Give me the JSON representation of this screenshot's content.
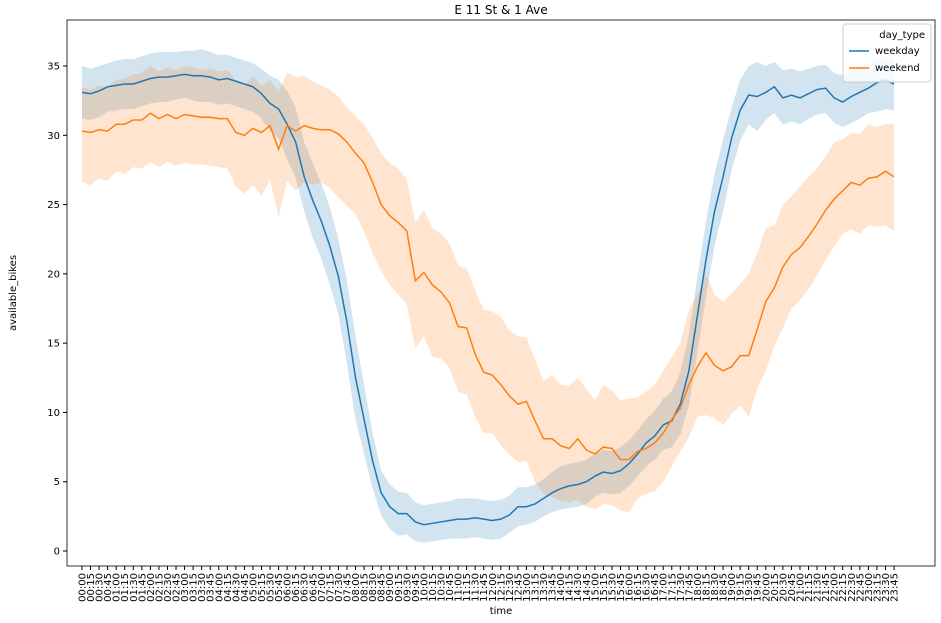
{
  "chart_data": {
    "type": "line",
    "title": "E 11 St & 1 Ave",
    "x_label": "time",
    "y_label": "available_bikes",
    "legend_title": "day_type",
    "legend": "upper right",
    "categories": [
      "00:00",
      "00:15",
      "00:30",
      "00:45",
      "01:00",
      "01:15",
      "01:30",
      "01:45",
      "02:00",
      "02:15",
      "02:30",
      "02:45",
      "03:00",
      "03:15",
      "03:30",
      "03:45",
      "04:00",
      "04:15",
      "04:30",
      "04:45",
      "05:00",
      "05:15",
      "05:30",
      "05:45",
      "06:00",
      "06:15",
      "06:30",
      "06:45",
      "07:00",
      "07:15",
      "07:30",
      "07:45",
      "08:00",
      "08:15",
      "08:30",
      "08:45",
      "09:00",
      "09:15",
      "09:30",
      "09:45",
      "10:00",
      "10:15",
      "10:30",
      "10:45",
      "11:00",
      "11:15",
      "11:30",
      "11:45",
      "12:00",
      "12:15",
      "12:30",
      "12:45",
      "13:00",
      "13:15",
      "13:30",
      "13:45",
      "14:00",
      "14:15",
      "14:30",
      "14:45",
      "15:00",
      "15:15",
      "15:30",
      "15:45",
      "16:00",
      "16:15",
      "16:30",
      "16:45",
      "17:00",
      "17:15",
      "17:30",
      "17:45",
      "18:00",
      "18:15",
      "18:30",
      "18:45",
      "19:00",
      "19:15",
      "19:30",
      "19:45",
      "20:00",
      "20:15",
      "20:30",
      "20:45",
      "21:00",
      "21:15",
      "21:30",
      "21:45",
      "22:00",
      "22:15",
      "22:30",
      "22:45",
      "23:00",
      "23:15",
      "23:30",
      "23:45"
    ],
    "series": [
      {
        "name": "weekday",
        "color": "#1f77b4",
        "values": [
          33.1,
          33.0,
          33.2,
          33.5,
          33.6,
          33.7,
          33.7,
          33.9,
          34.1,
          34.2,
          34.2,
          34.3,
          34.4,
          34.3,
          34.3,
          34.2,
          34.0,
          34.1,
          33.9,
          33.7,
          33.5,
          33.0,
          32.3,
          31.9,
          30.8,
          29.5,
          27.0,
          25.3,
          23.8,
          22.0,
          19.8,
          16.5,
          12.5,
          9.5,
          6.5,
          4.2,
          3.2,
          2.7,
          2.7,
          2.1,
          1.9,
          2.0,
          2.1,
          2.2,
          2.3,
          2.3,
          2.4,
          2.3,
          2.2,
          2.3,
          2.6,
          3.2,
          3.2,
          3.4,
          3.8,
          4.2,
          4.5,
          4.7,
          4.8,
          5.0,
          5.4,
          5.7,
          5.6,
          5.8,
          6.3,
          7.0,
          7.8,
          8.3,
          9.1,
          9.4,
          10.6,
          13.0,
          17.0,
          21.0,
          24.5,
          27.0,
          29.8,
          31.8,
          32.9,
          32.8,
          33.1,
          33.5,
          32.7,
          32.9,
          32.7,
          33.0,
          33.3,
          33.4,
          32.7,
          32.4,
          32.8,
          33.1,
          33.4,
          33.8,
          34.0,
          33.7
        ],
        "ci_lower": [
          31.2,
          31.1,
          31.3,
          31.7,
          31.8,
          31.9,
          31.9,
          32.1,
          32.3,
          32.4,
          32.4,
          32.6,
          32.7,
          32.5,
          32.4,
          32.4,
          32.2,
          32.3,
          32.1,
          31.9,
          31.7,
          31.2,
          30.3,
          29.8,
          28.3,
          26.9,
          24.5,
          22.6,
          21.1,
          19.2,
          17.1,
          13.5,
          9.5,
          7.0,
          4.5,
          2.6,
          1.6,
          1.1,
          1.2,
          0.7,
          0.6,
          0.7,
          0.8,
          0.9,
          0.9,
          0.9,
          1.0,
          0.9,
          0.8,
          0.9,
          1.3,
          1.8,
          1.9,
          2.1,
          2.5,
          2.8,
          3.0,
          3.1,
          3.2,
          3.4,
          3.9,
          4.2,
          4.1,
          4.2,
          4.7,
          5.4,
          6.1,
          6.6,
          7.3,
          7.5,
          8.4,
          10.5,
          14.3,
          18.3,
          22.0,
          24.5,
          27.5,
          29.6,
          30.8,
          30.3,
          31.1,
          31.6,
          30.8,
          31.0,
          30.8,
          31.2,
          31.5,
          31.6,
          30.9,
          30.6,
          30.9,
          31.2,
          31.6,
          31.7,
          31.9,
          31.8
        ],
        "ci_upper": [
          35.0,
          34.8,
          35.0,
          35.2,
          35.4,
          35.5,
          35.5,
          35.7,
          35.9,
          36.0,
          36.0,
          36.0,
          36.1,
          36.1,
          36.2,
          36.0,
          35.8,
          35.8,
          35.6,
          35.4,
          35.2,
          34.8,
          34.3,
          34.0,
          33.2,
          32.0,
          29.5,
          28.0,
          26.5,
          24.8,
          22.5,
          19.5,
          15.5,
          12.0,
          8.5,
          5.8,
          4.8,
          4.3,
          4.2,
          3.5,
          3.3,
          3.4,
          3.5,
          3.6,
          3.8,
          3.8,
          3.8,
          3.7,
          3.6,
          3.7,
          4.0,
          4.6,
          4.6,
          4.8,
          5.2,
          5.7,
          6.1,
          6.3,
          6.4,
          6.6,
          7.0,
          7.3,
          7.2,
          7.5,
          8.0,
          8.7,
          9.5,
          10.1,
          11.0,
          11.5,
          12.9,
          15.6,
          19.8,
          23.8,
          27.2,
          29.7,
          32.0,
          34.0,
          35.0,
          35.3,
          35.0,
          35.3,
          34.7,
          34.8,
          34.6,
          34.8,
          35.0,
          35.1,
          34.5,
          34.3,
          34.7,
          35.0,
          35.2,
          35.5,
          35.7,
          35.5
        ]
      },
      {
        "name": "weekend",
        "color": "#ff7f0e",
        "values": [
          30.3,
          30.2,
          30.4,
          30.3,
          30.8,
          30.8,
          31.1,
          31.1,
          31.6,
          31.2,
          31.5,
          31.2,
          31.5,
          31.4,
          31.3,
          31.3,
          31.2,
          31.2,
          30.2,
          30.0,
          30.5,
          30.2,
          30.7,
          29.0,
          30.7,
          30.3,
          30.7,
          30.5,
          30.4,
          30.4,
          30.1,
          29.5,
          28.7,
          28.0,
          26.6,
          25.0,
          24.2,
          23.7,
          23.1,
          19.5,
          20.1,
          19.2,
          18.7,
          17.9,
          16.2,
          16.1,
          14.2,
          12.9,
          12.7,
          12.0,
          11.2,
          10.6,
          10.8,
          9.4,
          8.1,
          8.1,
          7.6,
          7.4,
          8.1,
          7.3,
          7.0,
          7.5,
          7.4,
          6.6,
          6.6,
          7.2,
          7.4,
          7.8,
          8.5,
          9.5,
          10.3,
          12.0,
          13.3,
          14.3,
          13.4,
          13.0,
          13.3,
          14.1,
          14.1,
          16.0,
          18.0,
          19.0,
          20.5,
          21.4,
          21.9,
          22.7,
          23.6,
          24.6,
          25.4,
          26.0,
          26.6,
          26.4,
          26.9,
          27.0,
          27.4,
          27.0
        ],
        "ci_lower": [
          26.6,
          26.4,
          26.9,
          26.7,
          27.4,
          27.2,
          27.7,
          27.6,
          28.1,
          27.7,
          28.1,
          27.8,
          28.0,
          27.9,
          27.9,
          27.8,
          27.7,
          27.6,
          26.3,
          25.8,
          26.4,
          25.6,
          26.8,
          24.1,
          26.7,
          26.0,
          26.6,
          26.4,
          26.6,
          26.2,
          25.5,
          24.9,
          24.3,
          23.0,
          21.5,
          20.2,
          19.2,
          18.5,
          17.8,
          14.6,
          15.5,
          14.0,
          13.9,
          13.2,
          11.5,
          11.3,
          9.7,
          8.5,
          8.5,
          7.6,
          7.0,
          6.4,
          6.5,
          5.0,
          4.1,
          3.9,
          3.6,
          3.5,
          3.7,
          3.2,
          3.0,
          3.4,
          3.3,
          2.9,
          2.8,
          3.8,
          4.1,
          4.3,
          5.0,
          6.1,
          7.2,
          8.2,
          9.7,
          9.8,
          9.6,
          9.1,
          9.9,
          10.5,
          9.7,
          11.7,
          13.0,
          14.8,
          16.1,
          17.5,
          18.1,
          18.9,
          19.9,
          21.0,
          22.0,
          22.9,
          23.2,
          22.9,
          23.5,
          23.4,
          23.5,
          23.1
        ],
        "ci_upper": [
          33.5,
          33.3,
          33.6,
          33.5,
          34.0,
          34.1,
          34.4,
          34.5,
          35.0,
          34.6,
          34.9,
          34.7,
          35.0,
          34.9,
          34.7,
          34.8,
          34.6,
          34.7,
          34.0,
          33.6,
          34.3,
          33.6,
          34.0,
          33.1,
          34.5,
          34.2,
          34.3,
          33.9,
          33.6,
          33.3,
          32.8,
          32.0,
          31.4,
          30.8,
          29.8,
          28.7,
          28.0,
          27.6,
          26.8,
          23.7,
          24.6,
          23.3,
          22.9,
          22.2,
          20.6,
          20.4,
          18.8,
          17.4,
          17.3,
          16.9,
          15.9,
          15.5,
          15.4,
          13.8,
          12.3,
          12.7,
          12.0,
          11.9,
          12.5,
          11.7,
          10.9,
          12.0,
          11.6,
          10.9,
          11.0,
          11.1,
          11.5,
          12.0,
          13.0,
          14.0,
          15.0,
          17.4,
          18.5,
          20.0,
          18.5,
          18.0,
          18.6,
          19.3,
          20.0,
          21.5,
          23.3,
          23.5,
          25.0,
          25.6,
          26.3,
          27.0,
          27.6,
          28.5,
          29.5,
          29.7,
          30.2,
          30.1,
          30.8,
          30.6,
          30.8,
          30.8
        ]
      }
    ],
    "ylim": [
      -1.08,
      38.32
    ],
    "yticks": [
      0,
      5,
      10,
      15,
      20,
      25,
      30,
      35
    ]
  }
}
